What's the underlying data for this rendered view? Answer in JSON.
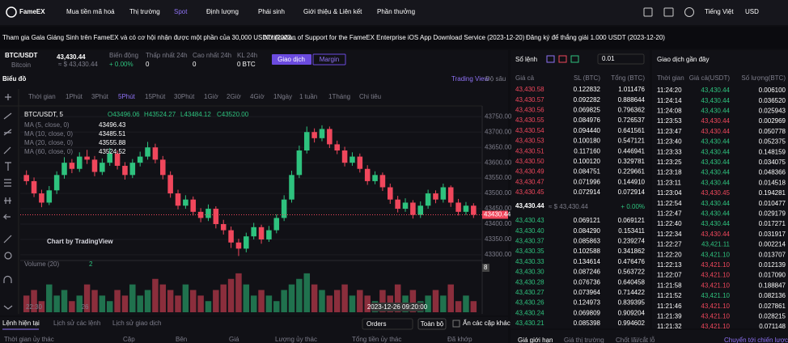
{
  "nav": {
    "logo": "FameEX",
    "items": [
      "Mua tiền mã hoá",
      "Thị trường",
      "Spot",
      "Định lượng",
      "Phái sinh",
      "Giới thiệu & Liên kết",
      "Phần thưởng"
    ],
    "language": "Tiếng Việt",
    "currency": "USD"
  },
  "announcements": [
    "Tham gia Gala Giáng Sinh trên FameEX và có cơ hội nhận được một phần của 30,000 USDT! (2023...",
    "Notification of Support for the FameEX Enterprise iOS App Download Service (2023-12-20)",
    "Đăng ký để thắng giải 1.000 USDT (2023-12-20)"
  ],
  "ticker": {
    "pair": "BTC/USDT",
    "coin": "Bitcoin",
    "price": "43,430.44",
    "price_usd": "≈ $ 43,430.44",
    "stats": [
      {
        "label": "Biến động",
        "value": "+ 0.00%"
      },
      {
        "label": "Thấp nhất 24h",
        "value": "0"
      },
      {
        "label": "Cao nhất 24h",
        "value": "0"
      },
      {
        "label": "KL 24h",
        "value": "0 BTC"
      }
    ],
    "buttons": [
      "Giao dịch",
      "Margin"
    ]
  },
  "chart_panel": {
    "title": "Biểu đồ",
    "views": [
      "Trading View",
      "Độ sâu"
    ],
    "intervals": [
      "Thời gian",
      "1Phút",
      "3Phút",
      "5Phút",
      "15Phút",
      "30Phút",
      "1Giờ",
      "2Giờ",
      "4Giờ",
      "1Ngày",
      "1 tuần",
      "1Tháng",
      "Chi tiêu"
    ],
    "active_interval": 3
  },
  "chart_data": {
    "type": "candlestick",
    "title": "BTC/USDT, 5",
    "ohlc": [
      "O43496.06",
      "H43524.27",
      "L43484.12",
      "C43520.00"
    ],
    "ma": [
      {
        "label": "MA (5, close, 0)",
        "value": "43496.43"
      },
      {
        "label": "MA (10, close, 0)",
        "value": "43485.51"
      },
      {
        "label": "MA (20, close, 0)",
        "value": "43555.88"
      },
      {
        "label": "MA (60, close, 0)",
        "value": "43524.52"
      }
    ],
    "watermark": "Chart by TradingView",
    "volume_title": "Volume (20)",
    "volume_last": "2",
    "last_price": 43430.44,
    "last_price_label": "43430.44",
    "x_labels": [
      "22:30",
      "26"
    ],
    "crosshair_label": "2023-12-26 09:20:00",
    "up_color": "#2ec27e",
    "down_color": "#f0475c",
    "candles": [
      [
        43560,
        43575,
        43528,
        43540
      ],
      [
        43540,
        43552,
        43488,
        43500
      ],
      [
        43500,
        43512,
        43455,
        43470
      ],
      [
        43470,
        43524,
        43462,
        43510
      ],
      [
        43510,
        43572,
        43498,
        43560
      ],
      [
        43560,
        43618,
        43548,
        43600
      ],
      [
        43600,
        43612,
        43566,
        43580
      ],
      [
        43580,
        43634,
        43570,
        43620
      ],
      [
        43620,
        43642,
        43596,
        43610
      ],
      [
        43610,
        43622,
        43556,
        43570
      ],
      [
        43570,
        43614,
        43560,
        43600
      ],
      [
        43600,
        43648,
        43590,
        43630
      ],
      [
        43630,
        43640,
        43578,
        43590
      ],
      [
        43590,
        43602,
        43545,
        43560
      ],
      [
        43560,
        43612,
        43550,
        43600
      ],
      [
        43600,
        43636,
        43588,
        43620
      ],
      [
        43620,
        43668,
        43610,
        43650
      ],
      [
        43650,
        43662,
        43598,
        43610
      ],
      [
        43610,
        43622,
        43546,
        43560
      ],
      [
        43560,
        43572,
        43486,
        43500
      ],
      [
        43500,
        43512,
        43448,
        43460
      ],
      [
        43460,
        43494,
        43450,
        43480
      ],
      [
        43480,
        43490,
        43428,
        43440
      ],
      [
        43440,
        43452,
        43406,
        43420
      ],
      [
        43420,
        43464,
        43410,
        43450
      ],
      [
        43450,
        43458,
        43386,
        43400
      ],
      [
        43400,
        43414,
        43366,
        43380
      ],
      [
        43380,
        43392,
        43322,
        43340
      ],
      [
        43340,
        43352,
        43296,
        43320
      ],
      [
        43320,
        43372,
        43308,
        43360
      ],
      [
        43360,
        43404,
        43350,
        43390
      ],
      [
        43390,
        43398,
        43336,
        43350
      ],
      [
        43350,
        43394,
        43342,
        43380
      ],
      [
        43380,
        43432,
        43370,
        43420
      ],
      [
        43420,
        43494,
        43410,
        43480
      ],
      [
        43480,
        43574,
        43470,
        43560
      ],
      [
        43560,
        43656,
        43550,
        43640
      ],
      [
        43640,
        43718,
        43630,
        43700
      ],
      [
        43700,
        43712,
        43666,
        43680
      ],
      [
        43680,
        43722,
        43670,
        43710
      ],
      [
        43710,
        43718,
        43648,
        43660
      ],
      [
        43660,
        43672,
        43628,
        43640
      ],
      [
        43640,
        43652,
        43588,
        43600
      ],
      [
        43600,
        43634,
        43590,
        43620
      ],
      [
        43620,
        43630,
        43568,
        43580
      ],
      [
        43580,
        43592,
        43528,
        43540
      ],
      [
        43540,
        43572,
        43530,
        43560
      ],
      [
        43560,
        43568,
        43508,
        43520
      ],
      [
        43520,
        43532,
        43466,
        43480
      ],
      [
        43480,
        43492,
        43438,
        43450
      ],
      [
        43450,
        43484,
        43440,
        43470
      ],
      [
        43470,
        43478,
        43418,
        43430
      ],
      [
        43430,
        43474,
        43420,
        43460
      ],
      [
        43460,
        43512,
        43450,
        43500
      ],
      [
        43500,
        43510,
        43468,
        43480
      ],
      [
        43480,
        43532,
        43470,
        43520
      ],
      [
        43520,
        43526,
        43456,
        43470
      ],
      [
        43470,
        43482,
        43428,
        43440
      ],
      [
        43440,
        43472,
        43430,
        43460
      ],
      [
        43460,
        43468,
        43420,
        43430.44
      ]
    ],
    "volumes": [
      3,
      4,
      2,
      5,
      3,
      4,
      2,
      3,
      5,
      4,
      3,
      2,
      4,
      3,
      5,
      3,
      4,
      6,
      5,
      4,
      3,
      5,
      4,
      3,
      2,
      4,
      5,
      6,
      7,
      5,
      3,
      4,
      3,
      2,
      4,
      5,
      6,
      7,
      5,
      4,
      3,
      4,
      5,
      3,
      4,
      3,
      2,
      4,
      3,
      5,
      3,
      4,
      2,
      3,
      4,
      3,
      5,
      2,
      3,
      2
    ],
    "ylim": [
      43284,
      43785
    ],
    "yticks": [
      {
        "value": 43300,
        "label": "43300.00"
      },
      {
        "value": 43350,
        "label": "43350.00"
      },
      {
        "value": 43400,
        "label": "43400.00"
      },
      {
        "value": 43450,
        "label": "43450.00"
      },
      {
        "value": 43500,
        "label": "43500.00"
      },
      {
        "value": 43550,
        "label": "43550.00"
      },
      {
        "value": 43600,
        "label": "43600.00"
      },
      {
        "value": 43650,
        "label": "43650.00"
      },
      {
        "value": 43700,
        "label": "43700.00"
      },
      {
        "value": 43750,
        "label": "43750.00"
      }
    ],
    "vlim": [
      0,
      8
    ],
    "vticks": [
      8
    ],
    "grid": true
  },
  "orderbook": {
    "title": "Sổ lệnh",
    "precision": "0.01",
    "columns": [
      "Giá cả",
      "SL (BTC)",
      "Tổng (BTC)"
    ],
    "asks": [
      [
        "43,430.58",
        "0.122832",
        "1.011476"
      ],
      [
        "43,430.57",
        "0.092282",
        "0.888644"
      ],
      [
        "43,430.56",
        "0.069825",
        "0.796362"
      ],
      [
        "43,430.55",
        "0.084976",
        "0.726537"
      ],
      [
        "43,430.54",
        "0.094440",
        "0.641561"
      ],
      [
        "43,430.53",
        "0.100180",
        "0.547121"
      ],
      [
        "43,430.51",
        "0.117160",
        "0.446941"
      ],
      [
        "43,430.50",
        "0.100120",
        "0.329781"
      ],
      [
        "43,430.49",
        "0.084751",
        "0.229661"
      ],
      [
        "43,430.47",
        "0.071996",
        "0.144910"
      ],
      [
        "43,430.45",
        "0.072914",
        "0.072914"
      ]
    ],
    "mid": {
      "price": "43,430.44",
      "usd": "≈ $ 43,430.44",
      "change": "+ 0.00%"
    },
    "bids": [
      [
        "43,430.43",
        "0.069121",
        "0.069121"
      ],
      [
        "43,430.40",
        "0.084290",
        "0.153411"
      ],
      [
        "43,430.37",
        "0.085863",
        "0.239274"
      ],
      [
        "43,430.35",
        "0.102588",
        "0.341862"
      ],
      [
        "43,430.33",
        "0.134614",
        "0.476476"
      ],
      [
        "43,430.30",
        "0.087246",
        "0.563722"
      ],
      [
        "43,430.28",
        "0.076736",
        "0.640458"
      ],
      [
        "43,430.27",
        "0.073964",
        "0.714422"
      ],
      [
        "43,430.26",
        "0.124973",
        "0.839395"
      ],
      [
        "43,430.24",
        "0.069809",
        "0.909204"
      ],
      [
        "43,430.21",
        "0.085398",
        "0.994602"
      ]
    ]
  },
  "trades": {
    "title": "Giao dịch gần đây",
    "columns": [
      "Thời gian",
      "Giá cả(USDT)",
      "Số lượng(BTC)"
    ],
    "rows": [
      {
        "time": "11:24:20",
        "price": "43,430.44",
        "amount": "0.006100",
        "side": "buy"
      },
      {
        "time": "11:24:14",
        "price": "43,430.44",
        "amount": "0.036520",
        "side": "buy"
      },
      {
        "time": "11:24:08",
        "price": "43,430.44",
        "amount": "0.025943",
        "side": "buy"
      },
      {
        "time": "11:23:53",
        "price": "43,430.44",
        "amount": "0.002969",
        "side": "sell"
      },
      {
        "time": "11:23:47",
        "price": "43,430.44",
        "amount": "0.050778",
        "side": "sell"
      },
      {
        "time": "11:23:40",
        "price": "43,430.44",
        "amount": "0.052375",
        "side": "buy"
      },
      {
        "time": "11:23:33",
        "price": "43,430.44",
        "amount": "0.148159",
        "side": "buy"
      },
      {
        "time": "11:23:25",
        "price": "43,430.44",
        "amount": "0.034075",
        "side": "buy"
      },
      {
        "time": "11:23:18",
        "price": "43,430.44",
        "amount": "0.048366",
        "side": "buy"
      },
      {
        "time": "11:23:11",
        "price": "43,430.44",
        "amount": "0.014518",
        "side": "buy"
      },
      {
        "time": "11:23:04",
        "price": "43,430.45",
        "amount": "0.194281",
        "side": "sell"
      },
      {
        "time": "11:22:54",
        "price": "43,430.44",
        "amount": "0.010477",
        "side": "buy"
      },
      {
        "time": "11:22:47",
        "price": "43,430.44",
        "amount": "0.029179",
        "side": "buy"
      },
      {
        "time": "11:22:40",
        "price": "43,430.44",
        "amount": "0.017271",
        "side": "buy"
      },
      {
        "time": "11:22:34",
        "price": "43,430.44",
        "amount": "0.031917",
        "side": "sell"
      },
      {
        "time": "11:22:27",
        "price": "43,421.11",
        "amount": "0.002214",
        "side": "buy"
      },
      {
        "time": "11:22:20",
        "price": "43,421.10",
        "amount": "0.013707",
        "side": "buy"
      },
      {
        "time": "11:22:13",
        "price": "43,421.10",
        "amount": "0.012139",
        "side": "sell"
      },
      {
        "time": "11:22:07",
        "price": "43,421.10",
        "amount": "0.017090",
        "side": "sell"
      },
      {
        "time": "11:21:58",
        "price": "43,421.10",
        "amount": "0.188847",
        "side": "sell"
      },
      {
        "time": "11:21:52",
        "price": "43,421.10",
        "amount": "0.082136",
        "side": "buy"
      },
      {
        "time": "11:21:46",
        "price": "43,421.10",
        "amount": "0.027861",
        "side": "sell"
      },
      {
        "time": "11:21:39",
        "price": "43,421.10",
        "amount": "0.028215",
        "side": "sell"
      },
      {
        "time": "11:21:32",
        "price": "43,421.10",
        "amount": "0.071148",
        "side": "sell"
      }
    ]
  },
  "orders": {
    "tabs": [
      "Lệnh hiện tại",
      "Lịch sử các lệnh",
      "Lịch sử giao dịch"
    ],
    "filter": "Orders",
    "all": "Toàn bộ",
    "hide": "Ẩn các cặp khác",
    "columns": [
      "Thời gian ủy thác",
      "Cặp",
      "Bên",
      "Giá",
      "Lượng ủy thác",
      "Tổng tiền ủy thác",
      "Đã khớp"
    ]
  },
  "trade_tabs": [
    "Giá giới hạn",
    "Giá thị trường",
    "Chốt lãi/cắt lỗ",
    "Chuyển tới chiến lược"
  ]
}
